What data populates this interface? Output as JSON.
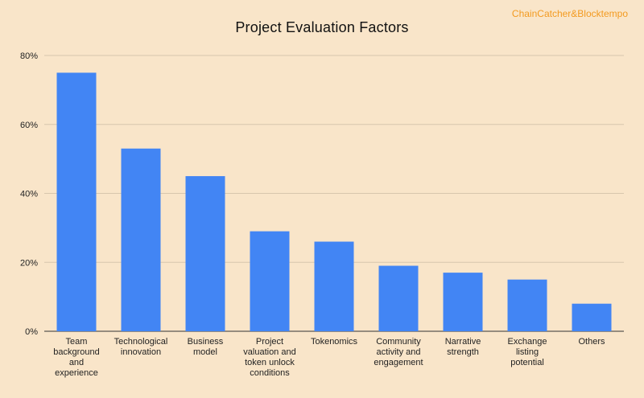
{
  "watermark": "ChainCatcher&Blocktempo",
  "chart_data": {
    "type": "bar",
    "title": "Project Evaluation Factors",
    "xlabel": "",
    "ylabel": "",
    "categories": [
      "Team background and experience",
      "Technological innovation",
      "Business model",
      "Project valuation and token unlock conditions",
      "Tokenomics",
      "Community activity and engagement",
      "Narrative strength",
      "Exchange listing potential",
      "Others"
    ],
    "category_label_lines": [
      [
        "Team",
        "background",
        "and",
        "experience"
      ],
      [
        "Technological",
        "innovation"
      ],
      [
        "Business",
        "model"
      ],
      [
        "Project",
        "valuation and",
        "token unlock",
        "conditions"
      ],
      [
        "Tokenomics"
      ],
      [
        "Community",
        "activity and",
        "engagement"
      ],
      [
        "Narrative",
        "strength"
      ],
      [
        "Exchange",
        "listing",
        "potential"
      ],
      [
        "Others"
      ]
    ],
    "values": [
      75,
      53,
      45,
      29,
      26,
      19,
      17,
      15,
      8
    ],
    "ylim": [
      0,
      80
    ],
    "yticks": [
      0,
      20,
      40,
      60,
      80
    ],
    "ytick_labels": [
      "0%",
      "20%",
      "40%",
      "60%",
      "80%"
    ],
    "grid": true,
    "legend": "none",
    "colors": {
      "bar": "#4285f4",
      "background": "#f9e5c9",
      "grid": "#d8c6ad",
      "axis": "#333333",
      "text": "#222222",
      "watermark": "#f39a1f"
    }
  }
}
